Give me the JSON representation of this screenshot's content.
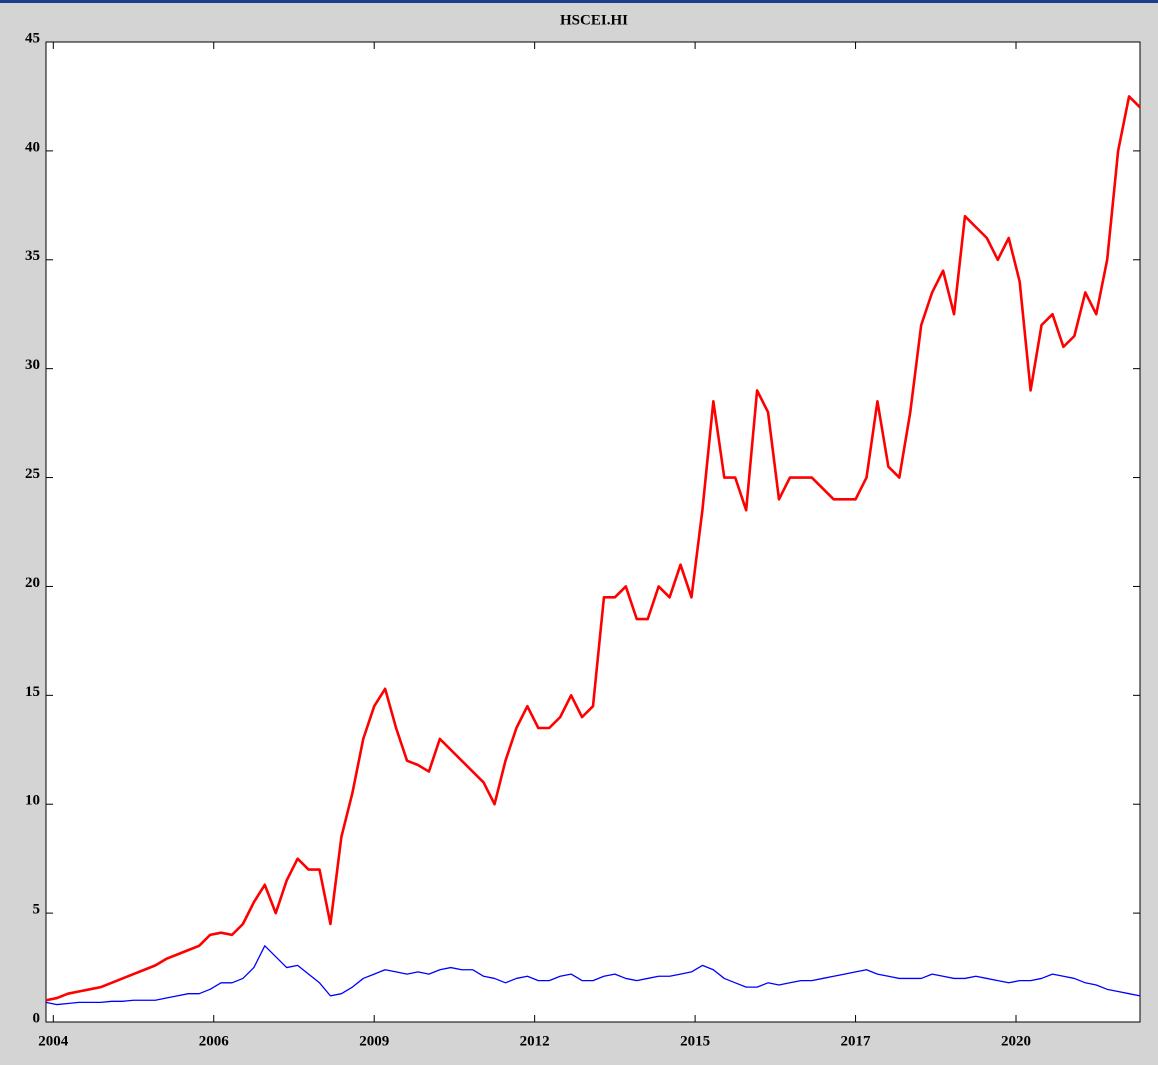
{
  "chart_data": {
    "type": "line",
    "title": "HSCEI.HI",
    "x": [
      0,
      45,
      90,
      135,
      180,
      225,
      270,
      315,
      360,
      405,
      450,
      495,
      540,
      585,
      630,
      675,
      720,
      765,
      810,
      855,
      900,
      945,
      990,
      1035,
      1080,
      1125,
      1170,
      1215,
      1260,
      1305,
      1350,
      1395,
      1440,
      1485,
      1530,
      1575,
      1620,
      1665,
      1710,
      1755,
      1800,
      1845,
      1890,
      1935,
      1980,
      2025,
      2070,
      2115,
      2160,
      2205,
      2250,
      2295,
      2340,
      2385,
      2430,
      2475,
      2520,
      2565,
      2610,
      2655,
      2700,
      2745,
      2790,
      2835,
      2880,
      2925,
      2970,
      3015,
      3060,
      3105,
      3150,
      3195,
      3240,
      3285,
      3330,
      3375,
      3420,
      3465,
      3510,
      3555,
      3600,
      3645,
      3690,
      3735,
      3780,
      3825,
      3870,
      3915,
      3960,
      4005,
      4050,
      4095,
      4140,
      4185,
      4230,
      4275,
      4320,
      4365,
      4410,
      4455,
      4500
    ],
    "series": [
      {
        "color": "#ff0000",
        "values": [
          1.0,
          1.1,
          1.3,
          1.4,
          1.5,
          1.6,
          1.8,
          2.0,
          2.2,
          2.4,
          2.6,
          2.9,
          3.1,
          3.3,
          3.5,
          4.0,
          4.1,
          4.0,
          4.5,
          5.5,
          6.3,
          5.0,
          6.5,
          7.5,
          7.0,
          7.0,
          4.5,
          8.5,
          10.5,
          13.0,
          14.5,
          15.3,
          13.5,
          12.0,
          11.8,
          11.5,
          13.0,
          12.5,
          12.0,
          11.5,
          11.0,
          10.0,
          12.0,
          13.5,
          14.5,
          13.5,
          13.5,
          14.0,
          15.0,
          14.0,
          14.5,
          19.5,
          19.5,
          20.0,
          18.5,
          18.5,
          20.0,
          19.5,
          21.0,
          19.5,
          23.5,
          28.5,
          25.0,
          25.0,
          23.5,
          29.0,
          28.0,
          24.0,
          25.0,
          25.0,
          25.0,
          24.5,
          24.0,
          24.0,
          24.0,
          25.0,
          28.5,
          25.5,
          25.0,
          28.0,
          32.0,
          33.5,
          34.5,
          32.5,
          37.0,
          36.5,
          36.0,
          35.0,
          36.0,
          34.0,
          29.0,
          32.0,
          32.5,
          31.0,
          31.5,
          33.5,
          32.5,
          35.0,
          40.0,
          42.5,
          42.0
        ]
      },
      {
        "color": "#0000ff",
        "values": [
          0.9,
          0.8,
          0.85,
          0.9,
          0.9,
          0.9,
          0.95,
          0.95,
          1.0,
          1.0,
          1.0,
          1.1,
          1.2,
          1.3,
          1.3,
          1.5,
          1.8,
          1.8,
          2.0,
          2.5,
          3.5,
          3.0,
          2.5,
          2.6,
          2.2,
          1.8,
          1.2,
          1.3,
          1.6,
          2.0,
          2.2,
          2.4,
          2.3,
          2.2,
          2.3,
          2.2,
          2.4,
          2.5,
          2.4,
          2.4,
          2.1,
          2.0,
          1.8,
          2.0,
          2.1,
          1.9,
          1.9,
          2.1,
          2.2,
          1.9,
          1.9,
          2.1,
          2.2,
          2.0,
          1.9,
          2.0,
          2.1,
          2.1,
          2.2,
          2.3,
          2.6,
          2.4,
          2.0,
          1.8,
          1.6,
          1.6,
          1.8,
          1.7,
          1.8,
          1.9,
          1.9,
          2.0,
          2.1,
          2.2,
          2.3,
          2.4,
          2.2,
          2.1,
          2.0,
          2.0,
          2.0,
          2.2,
          2.1,
          2.0,
          2.0,
          2.1,
          2.0,
          1.9,
          1.8,
          1.9,
          1.9,
          2.0,
          2.2,
          2.1,
          2.0,
          1.8,
          1.7,
          1.5,
          1.4,
          1.3,
          1.2
        ]
      }
    ],
    "xlim": [
      0,
      4500
    ],
    "xticks": [
      {
        "value": 30,
        "label": "2004"
      },
      {
        "value": 690,
        "label": "2006"
      },
      {
        "value": 1350,
        "label": "2009"
      },
      {
        "value": 2010,
        "label": "2012"
      },
      {
        "value": 2670,
        "label": "2015"
      },
      {
        "value": 3330,
        "label": "2017"
      },
      {
        "value": 3990,
        "label": "2020"
      }
    ],
    "ylim": [
      0,
      45
    ],
    "yticks": [
      0,
      5,
      10,
      15,
      20,
      25,
      30,
      35,
      40,
      45
    ]
  }
}
